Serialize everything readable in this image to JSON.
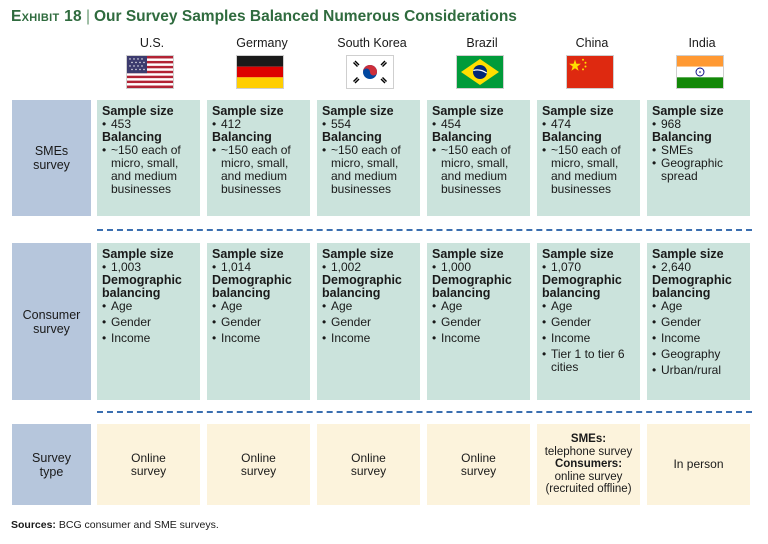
{
  "title": {
    "exhibit": "Exhibit 18",
    "separator": "|",
    "text": "Our Survey Samples Balanced Numerous Considerations"
  },
  "countries": [
    "U.S.",
    "Germany",
    "South Korea",
    "Brazil",
    "China",
    "India"
  ],
  "flags": [
    "us-flag-icon",
    "germany-flag-icon",
    "south-korea-flag-icon",
    "brazil-flag-icon",
    "china-flag-icon",
    "india-flag-icon"
  ],
  "row_labels": {
    "sme": "SMEs survey",
    "consumer": "Consumer survey",
    "type": "Survey type"
  },
  "headings": {
    "sample_size": "Sample size",
    "balancing": "Balancing",
    "demographic": "Demographic balancing"
  },
  "sme": [
    {
      "size": "453",
      "balancing": [
        "~150 each of micro, small, and medium businesses"
      ]
    },
    {
      "size": "412",
      "balancing": [
        "~150 each of micro, small, and medium businesses"
      ]
    },
    {
      "size": "554",
      "balancing": [
        "~150 each of micro, small, and medium businesses"
      ]
    },
    {
      "size": "454",
      "balancing": [
        "~150 each of micro, small, and medium businesses"
      ]
    },
    {
      "size": "474",
      "balancing": [
        "~150 each of micro, small, and medium businesses"
      ]
    },
    {
      "size": "968",
      "balancing": [
        "SMEs",
        "Geographic spread"
      ]
    }
  ],
  "consumer": [
    {
      "size": "1,003",
      "balancing": [
        "Age",
        "Gender",
        "Income"
      ]
    },
    {
      "size": "1,014",
      "balancing": [
        "Age",
        "Gender",
        "Income"
      ]
    },
    {
      "size": "1,002",
      "balancing": [
        "Age",
        "Gender",
        "Income"
      ]
    },
    {
      "size": "1,000",
      "balancing": [
        "Age",
        "Gender",
        "Income"
      ]
    },
    {
      "size": "1,070",
      "balancing": [
        "Age",
        "Gender",
        "Income",
        "Tier 1 to tier 6 cities"
      ]
    },
    {
      "size": "2,640",
      "balancing": [
        "Age",
        "Gender",
        "Income",
        "Geography",
        "Urban/rural"
      ]
    }
  ],
  "survey_type": [
    "Online survey",
    "Online survey",
    "Online survey",
    "Online survey",
    "",
    "In person"
  ],
  "china_type": {
    "sme_label": "SMEs:",
    "sme_value": "telephone survey",
    "consumer_label": "Consumers:",
    "consumer_value": "online survey (recruited offline)"
  },
  "sources": {
    "label": "Sources:",
    "text": "BCG consumer and SME surveys."
  },
  "colors": {
    "title": "#2f6b3e",
    "label_bg": "#b6c6dc",
    "cell_bg": "#cbe3dc",
    "type_bg": "#fcf3dc",
    "dash": "#3b6fb0"
  }
}
